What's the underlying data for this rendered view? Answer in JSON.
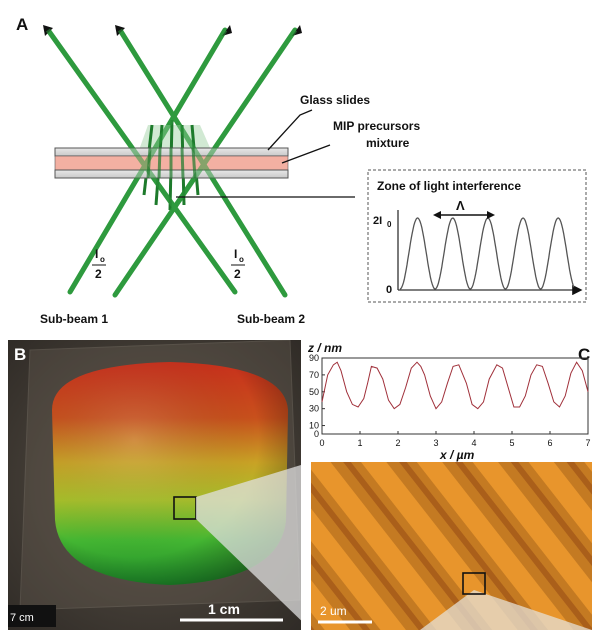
{
  "panel_a": {
    "label": "A",
    "glass_slides": "Glass slides",
    "mip_line1": "MIP precursors",
    "mip_line2": "mixture",
    "sub_beam_1": "Sub-beam 1",
    "sub_beam_2": "Sub-beam 2",
    "intensity_num": "I",
    "intensity_sub": "o",
    "intensity_den": "2",
    "beam_color": "#2e9a3e"
  },
  "interference_inset": {
    "title": "Zone of light interference",
    "y_top_label": "2I",
    "y_top_sub": "0",
    "y_zero_label": "0",
    "period_symbol": "Λ",
    "peaks": 5
  },
  "panel_b": {
    "label": "B",
    "scale_bar": "1 cm",
    "corner_text": "7 cm"
  },
  "panel_c": {
    "label": "C",
    "scale_bar": "2 um",
    "profile_color": "#a0303a"
  },
  "chart_data": {
    "type": "line",
    "title": "",
    "xlabel": "x / µm",
    "ylabel": "z / nm",
    "xlim": [
      0,
      7
    ],
    "ylim": [
      0,
      90
    ],
    "x_ticks": [
      "0",
      "1",
      "2",
      "3",
      "4",
      "5",
      "6",
      "7"
    ],
    "y_ticks": [
      "0",
      "10",
      "30",
      "50",
      "70",
      "90"
    ],
    "series": [
      {
        "x": [
          0,
          0.15,
          0.3,
          0.4,
          0.5,
          0.65,
          0.8,
          0.95,
          1.1,
          1.2,
          1.3,
          1.45,
          1.6,
          1.75,
          1.9,
          2.05,
          2.2,
          2.35,
          2.5,
          2.6,
          2.7,
          2.85,
          3.0,
          3.15,
          3.3,
          3.45,
          3.6,
          3.8,
          3.95,
          4.1,
          4.25,
          4.4,
          4.6,
          4.75,
          4.9,
          5.05,
          5.2,
          5.35,
          5.5,
          5.65,
          5.8,
          5.95,
          6.1,
          6.25,
          6.4,
          6.55,
          6.7,
          6.85,
          7.0
        ],
        "y": [
          38,
          70,
          82,
          85,
          75,
          50,
          35,
          32,
          42,
          60,
          80,
          78,
          65,
          40,
          30,
          35,
          55,
          78,
          85,
          80,
          70,
          45,
          30,
          38,
          60,
          80,
          82,
          60,
          35,
          30,
          38,
          65,
          82,
          78,
          55,
          32,
          32,
          45,
          70,
          82,
          80,
          60,
          38,
          32,
          45,
          72,
          85,
          75,
          50
        ]
      }
    ]
  }
}
